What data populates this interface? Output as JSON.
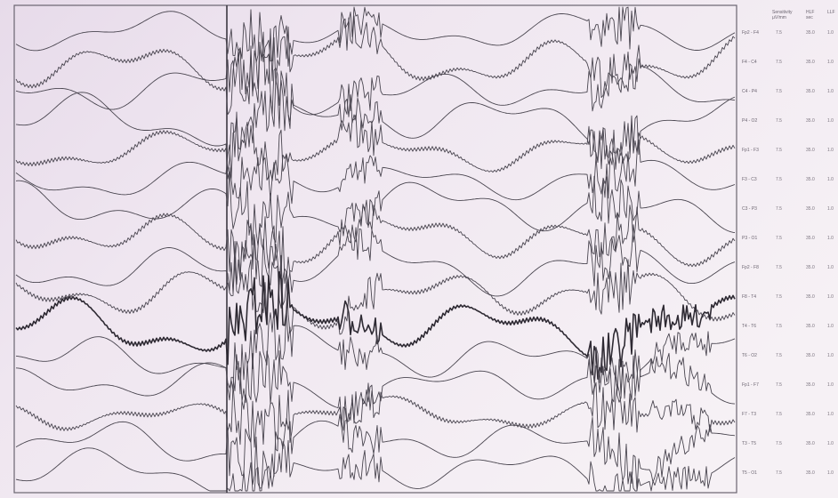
{
  "header": {
    "col1": "Sensitivity",
    "col1_sub": "µV/mm",
    "col2": "HLF",
    "col2_sub": "sec",
    "col3": "LLF"
  },
  "channels": [
    {
      "label": "Fp2 - F4",
      "sens": "7.5",
      "hf": "35.0",
      "lf": "1.0"
    },
    {
      "label": "F4 - C4",
      "sens": "7.5",
      "hf": "35.0",
      "lf": "1.0"
    },
    {
      "label": "C4 - P4",
      "sens": "7.5",
      "hf": "35.0",
      "lf": "1.0"
    },
    {
      "label": "P4 - O2",
      "sens": "7.5",
      "hf": "35.0",
      "lf": "1.0"
    },
    {
      "label": "Fp1 - F3",
      "sens": "7.5",
      "hf": "35.0",
      "lf": "1.0"
    },
    {
      "label": "F3 - C3",
      "sens": "7.5",
      "hf": "35.0",
      "lf": "1.0"
    },
    {
      "label": "C3 - P3",
      "sens": "7.5",
      "hf": "35.0",
      "lf": "1.0"
    },
    {
      "label": "P3 - O1",
      "sens": "7.5",
      "hf": "35.0",
      "lf": "1.0"
    },
    {
      "label": "Fp2 - F8",
      "sens": "7.5",
      "hf": "35.0",
      "lf": "1.0"
    },
    {
      "label": "F8 - T4",
      "sens": "7.5",
      "hf": "35.0",
      "lf": "1.0"
    },
    {
      "label": "T4 - T6",
      "sens": "7.5",
      "hf": "35.0",
      "lf": "1.0"
    },
    {
      "label": "T6 - O2",
      "sens": "7.5",
      "hf": "35.0",
      "lf": "1.0"
    },
    {
      "label": "Fp1 - F7",
      "sens": "7.5",
      "hf": "35.0",
      "lf": "1.0"
    },
    {
      "label": "F7 - T3",
      "sens": "7.5",
      "hf": "35.0",
      "lf": "1.0"
    },
    {
      "label": "T3 - T5",
      "sens": "7.5",
      "hf": "35.0",
      "lf": "1.0"
    },
    {
      "label": "T5 - O1",
      "sens": "7.5",
      "hf": "35.0",
      "lf": "1.0"
    }
  ],
  "colors": {
    "paper": "#f4eef3",
    "wash": "#e6d9e8",
    "trace": "#4a4650",
    "trace_dark": "#2e2a33"
  }
}
